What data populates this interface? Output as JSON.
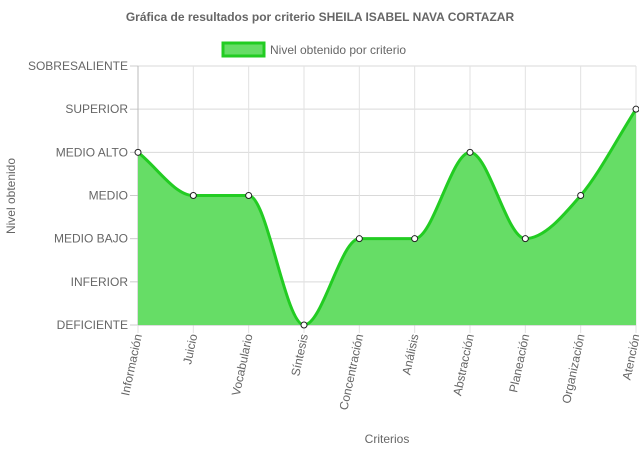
{
  "chart_data": {
    "type": "area",
    "title": "Gráfica de resultados por criterio SHEILA ISABEL NAVA CORTAZAR",
    "xlabel": "Criterios",
    "ylabel": "Nivel obtenido",
    "categories": [
      "Información",
      "Juicio",
      "Vocabulario",
      "Síntesis",
      "Concentración",
      "Análisis",
      "Abstracción",
      "Planeación",
      "Organización",
      "Atención"
    ],
    "y_levels": [
      "DEFICIENTE",
      "INFERIOR",
      "MEDIO BAJO",
      "MEDIO",
      "MEDIO ALTO",
      "SUPERIOR",
      "SOBRESALIENTE"
    ],
    "ylim": [
      0,
      6
    ],
    "series": [
      {
        "name": "Nivel obtenido por criterio",
        "values": [
          4,
          3,
          3,
          0,
          2,
          2,
          4,
          2,
          3,
          5
        ],
        "fill_color": "#66dd66",
        "line_color": "#22cc22"
      }
    ],
    "legend_position": "top",
    "grid": true
  }
}
